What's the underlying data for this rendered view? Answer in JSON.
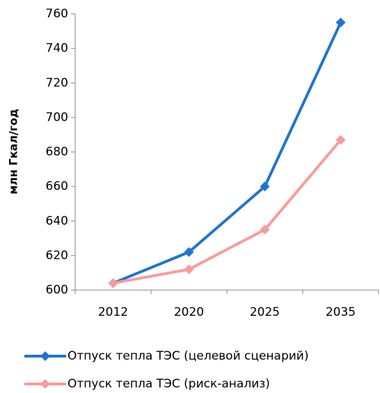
{
  "chart_data": {
    "type": "line",
    "y_label": "млн Гкал/год",
    "categories": [
      "2012",
      "2020",
      "2025",
      "2035"
    ],
    "series": [
      {
        "name": "Отпуск тепла ТЭС (целевой сценарий)",
        "color": "#1f74d1",
        "values": [
          604,
          622,
          660,
          755
        ]
      },
      {
        "name": "Отпуск тепла ТЭС (риск-анализ)",
        "color": "#fb9a9a",
        "values": [
          604,
          612,
          635,
          687
        ]
      }
    ],
    "ylim": [
      600,
      760
    ],
    "yticks": [
      600,
      620,
      640,
      660,
      680,
      700,
      720,
      740,
      760
    ],
    "grid": false,
    "legend": "bottom"
  }
}
